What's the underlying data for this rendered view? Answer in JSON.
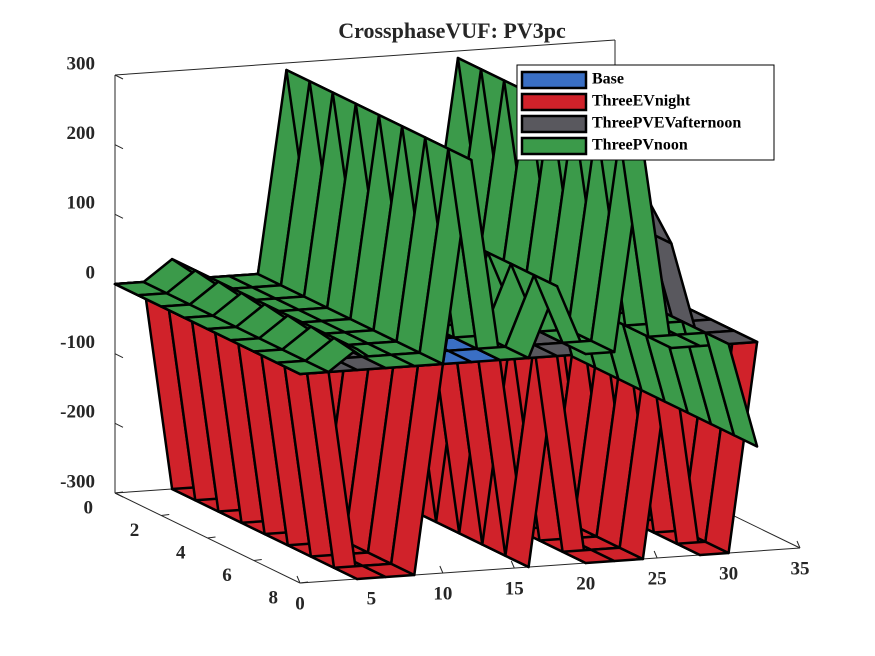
{
  "chart_data": {
    "type": "surface3d",
    "title": "CrossphaseVUF: PV3pc",
    "x": [
      0,
      2,
      4,
      6,
      8,
      10,
      12,
      14,
      16,
      18,
      20,
      22,
      24,
      26,
      28,
      30,
      32
    ],
    "series": [
      {
        "name": "Base",
        "color": "#3a6fc4",
        "values": [
          0,
          0,
          0,
          0,
          0,
          0,
          0,
          0,
          0,
          0,
          0,
          0,
          0,
          0,
          0,
          0,
          0
        ]
      },
      {
        "name": "ThreeEVnight",
        "color": "#d0222a",
        "values": [
          0,
          0,
          -300,
          -300,
          -300,
          0,
          0,
          0,
          -300,
          0,
          -300,
          -300,
          -300,
          0,
          -300,
          -300,
          0
        ]
      },
      {
        "name": "ThreePVEVafternoon",
        "color": "#59585e",
        "values": [
          0,
          0,
          0,
          0,
          0,
          0,
          250,
          150,
          0,
          0,
          0,
          0,
          230,
          150,
          0,
          0,
          0
        ]
      },
      {
        "name": "ThreePVnoon",
        "color": "#3b9a4a",
        "values": [
          0,
          0,
          30,
          0,
          0,
          0,
          290,
          0,
          0,
          100,
          0,
          0,
          290,
          0,
          0,
          0,
          -150
        ]
      }
    ],
    "xlim": [
      0,
      35
    ],
    "xticks": [
      0,
      5,
      10,
      15,
      20,
      25,
      30,
      35
    ],
    "ylim": [
      0,
      8
    ],
    "yticks": [
      0,
      2,
      4,
      6,
      8
    ],
    "zlim": [
      -300,
      300
    ],
    "zticks": [
      -300,
      -200,
      -100,
      0,
      100,
      200,
      300
    ]
  }
}
